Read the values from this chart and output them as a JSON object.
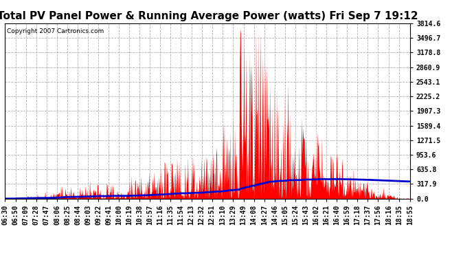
{
  "title": "Total PV Panel Power & Running Average Power (watts) Fri Sep 7 19:12",
  "copyright": "Copyright 2007 Cartronics.com",
  "background_color": "#ffffff",
  "plot_bg_color": "#ffffff",
  "grid_color": "#b0b0b0",
  "bar_color": "#ff0000",
  "line_color": "#0000cc",
  "ymin": 0.0,
  "ymax": 3814.6,
  "yticks": [
    0.0,
    317.9,
    635.8,
    953.6,
    1271.5,
    1589.4,
    1907.3,
    2225.2,
    2543.1,
    2860.9,
    3178.8,
    3496.7,
    3814.6
  ],
  "xtick_labels": [
    "06:30",
    "06:50",
    "07:09",
    "07:28",
    "07:47",
    "08:06",
    "08:25",
    "08:44",
    "09:03",
    "09:22",
    "09:41",
    "10:00",
    "10:19",
    "10:38",
    "10:57",
    "11:16",
    "11:35",
    "11:54",
    "12:13",
    "12:32",
    "12:51",
    "13:10",
    "13:29",
    "13:49",
    "14:08",
    "14:27",
    "14:46",
    "15:05",
    "15:24",
    "15:43",
    "16:02",
    "16:21",
    "16:40",
    "16:59",
    "17:18",
    "17:37",
    "17:56",
    "18:16",
    "18:35",
    "18:55"
  ],
  "title_fontsize": 11,
  "copyright_fontsize": 6.5,
  "tick_fontsize": 7,
  "line_width": 2.0
}
